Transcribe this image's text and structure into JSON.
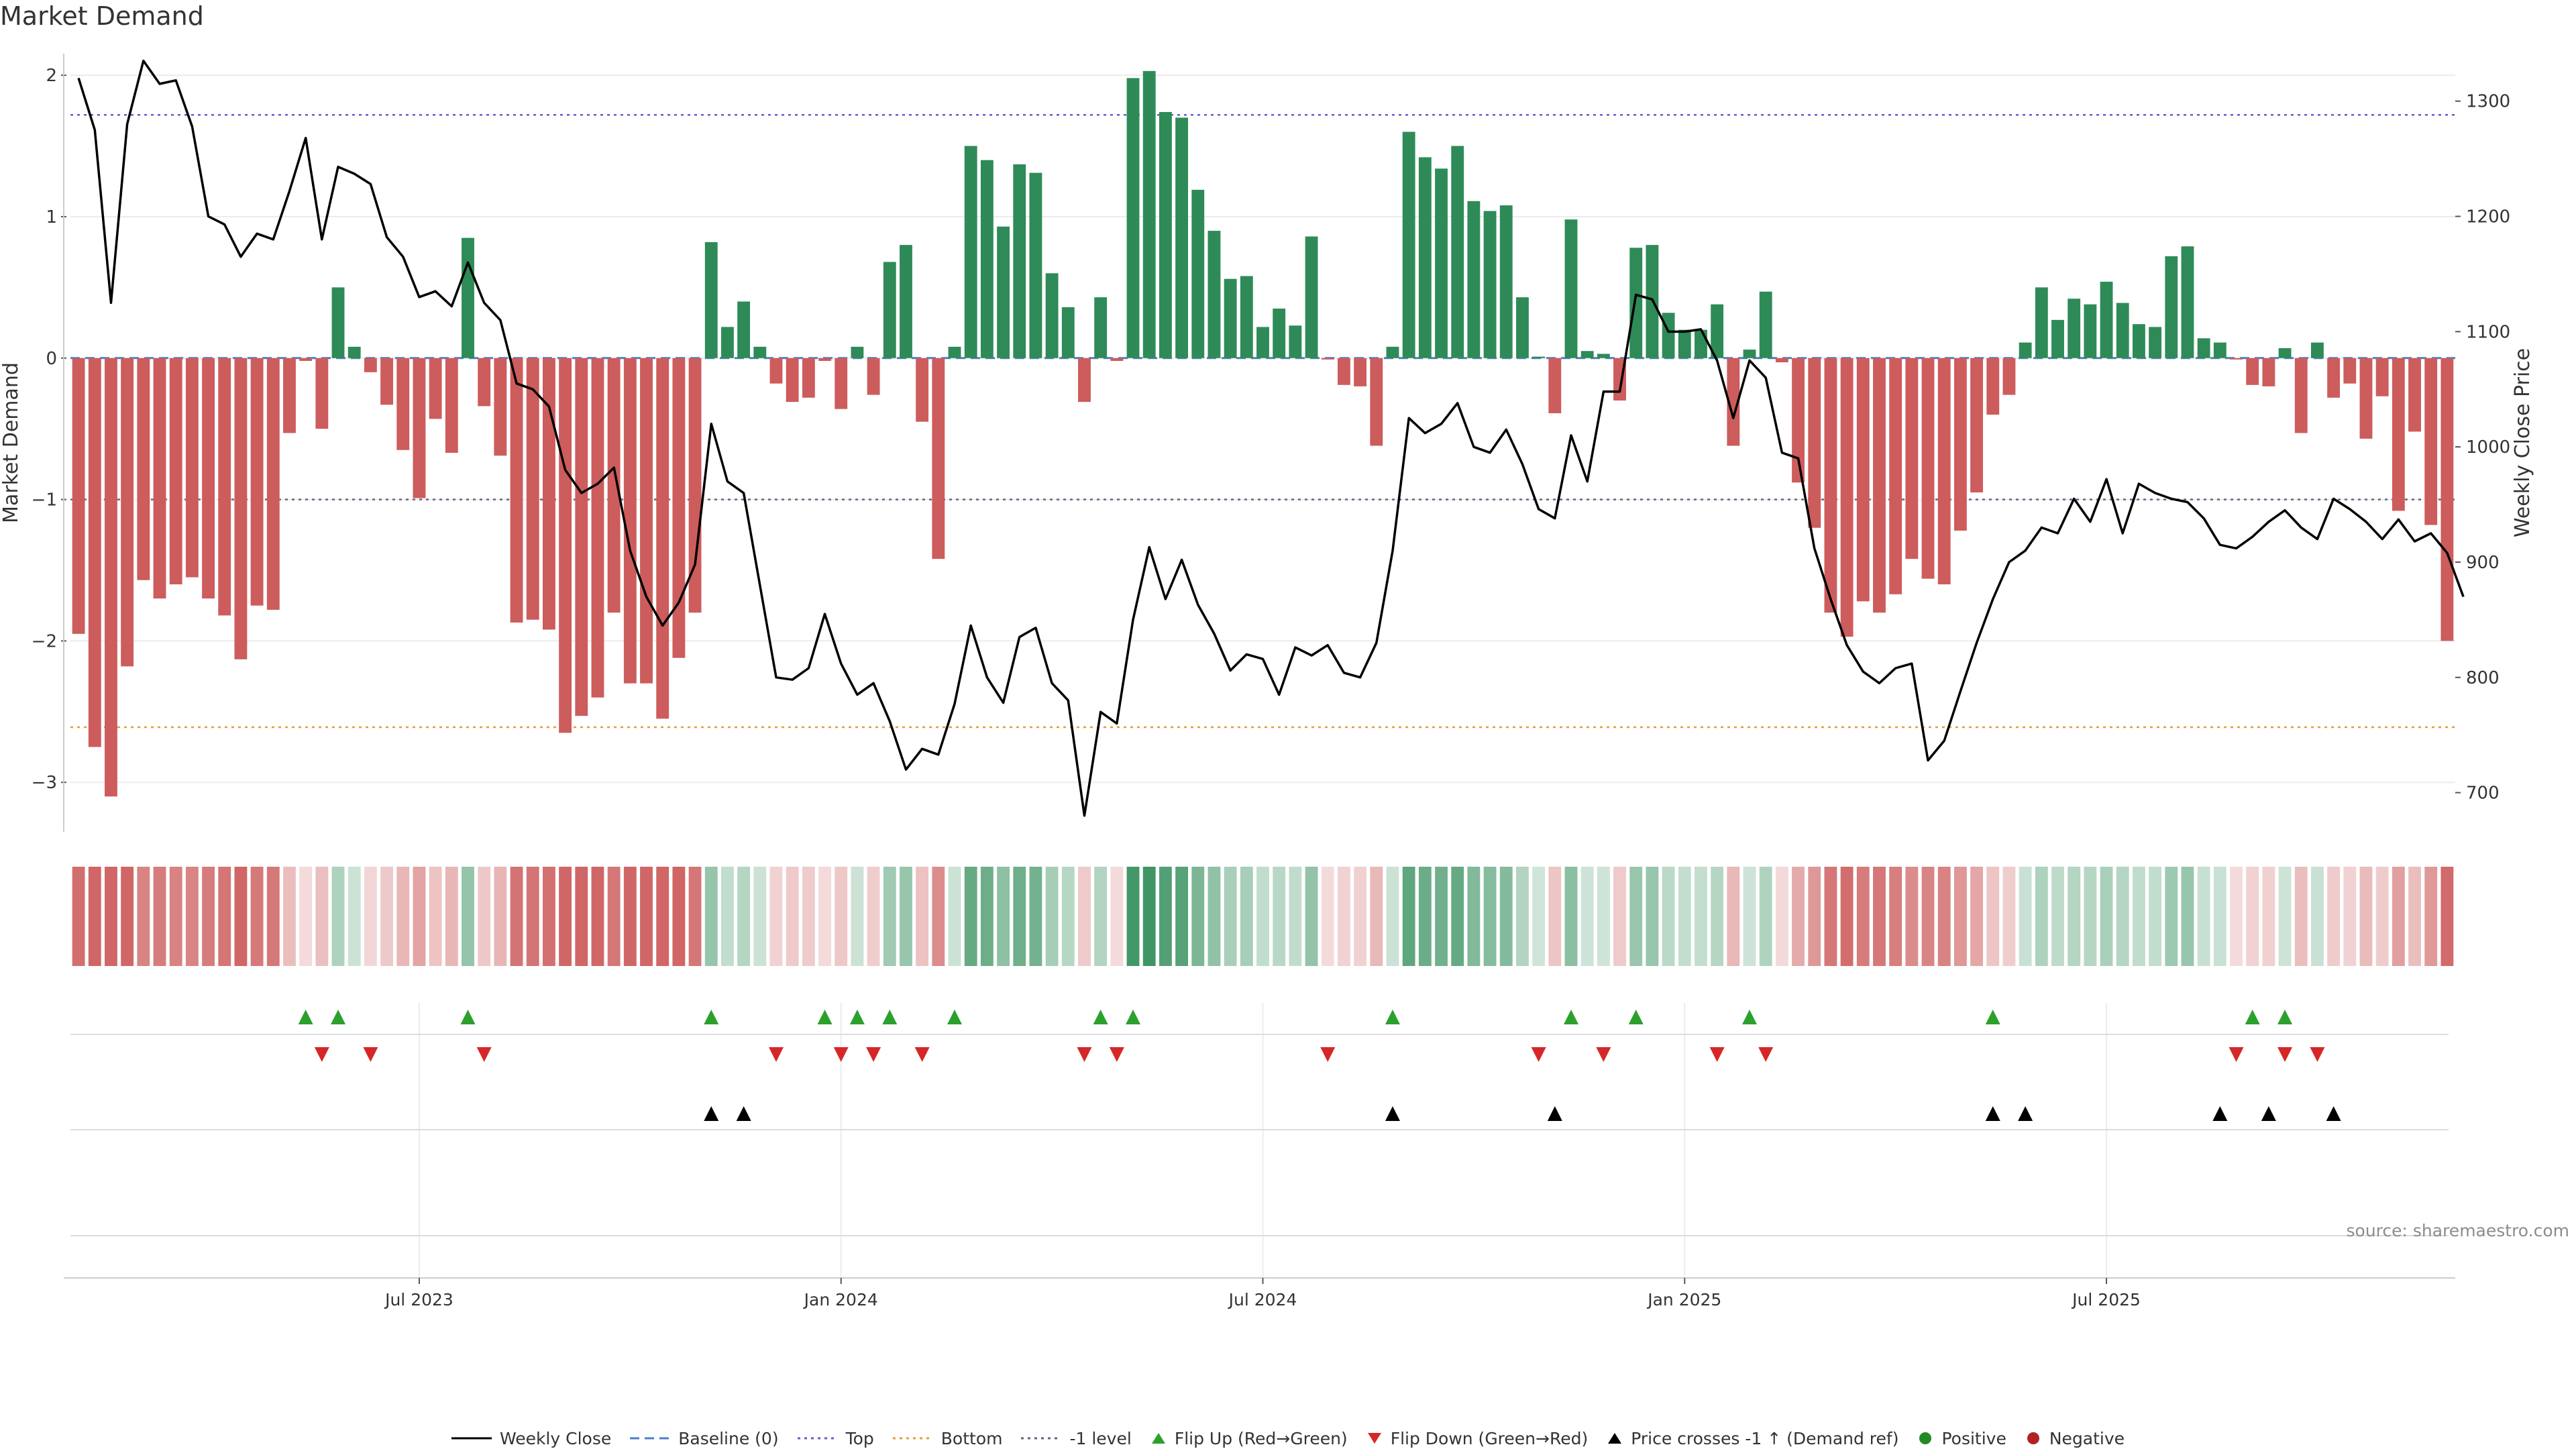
{
  "chart_data": {
    "type": "bar+line",
    "title": "Market Demand",
    "ylabel_left": "Market Demand",
    "ylabel_right": "Weekly Close Price",
    "source": "source: sharemaestro.com",
    "left_axis": {
      "ylim": [
        -3.35,
        2.2
      ],
      "ticks": [
        2,
        1,
        0,
        -1,
        -2,
        -3
      ],
      "tick_labels": [
        "2",
        "1",
        "0",
        "−1",
        "−2",
        "−3"
      ]
    },
    "right_axis": {
      "ylim": [
        666,
        1347
      ],
      "ticks": [
        1300,
        1200,
        1100,
        1000,
        900,
        800,
        700
      ],
      "tick_labels": [
        "1300",
        "1200",
        "1100",
        "1000",
        "900",
        "800",
        "700"
      ]
    },
    "reference_lines": {
      "top": 1.72,
      "bottom": -2.61,
      "minus_one": -1.0,
      "baseline": 0
    },
    "x_ticks": [
      {
        "index": 21,
        "label": "Jul 2023"
      },
      {
        "index": 47,
        "label": "Jan 2024"
      },
      {
        "index": 73,
        "label": "Jul 2024"
      },
      {
        "index": 99,
        "label": "Jan 2025"
      },
      {
        "index": 125,
        "label": "Jul 2025"
      }
    ],
    "demand": [
      -1.95,
      -2.75,
      -3.1,
      -2.18,
      -1.57,
      -1.7,
      -1.6,
      -1.55,
      -1.7,
      -1.82,
      -2.13,
      -1.75,
      -1.78,
      -0.53,
      -0.02,
      -0.5,
      0.5,
      0.08,
      -0.1,
      -0.33,
      -0.65,
      -0.99,
      -0.43,
      -0.67,
      0.85,
      -0.34,
      -0.69,
      -1.87,
      -1.85,
      -1.92,
      -2.65,
      -2.53,
      -2.4,
      -1.8,
      -2.3,
      -2.3,
      -2.55,
      -2.12,
      -1.8,
      0.82,
      0.22,
      0.4,
      0.08,
      -0.18,
      -0.31,
      -0.28,
      -0.02,
      -0.36,
      0.08,
      -0.26,
      0.68,
      0.8,
      -0.45,
      -1.42,
      0.08,
      1.5,
      1.4,
      0.93,
      1.37,
      1.31,
      0.6,
      0.36,
      -0.31,
      0.43,
      -0.02,
      1.98,
      2.03,
      1.74,
      1.7,
      1.19,
      0.9,
      0.56,
      0.58,
      0.22,
      0.35,
      0.23,
      0.86,
      -0.01,
      -0.19,
      -0.2,
      -0.62,
      0.08,
      1.6,
      1.42,
      1.34,
      1.5,
      1.11,
      1.04,
      1.08,
      0.43,
      0.01,
      -0.39,
      0.98,
      0.05,
      0.03,
      -0.3,
      0.78,
      0.8,
      0.32,
      0.2,
      0.2,
      0.38,
      -0.62,
      0.06,
      0.47,
      -0.03,
      -0.88,
      -1.2,
      -1.8,
      -1.97,
      -1.72,
      -1.8,
      -1.67,
      -1.42,
      -1.56,
      -1.6,
      -1.22,
      -0.95,
      -0.4,
      -0.26,
      0.11,
      0.5,
      0.27,
      0.42,
      0.38,
      0.54,
      0.39,
      0.24,
      0.22,
      0.72,
      0.79,
      0.14,
      0.11,
      -0.01,
      -0.19,
      -0.2,
      0.07,
      -0.53,
      0.11,
      -0.28,
      -0.18,
      -0.57,
      -0.27,
      -1.08,
      -0.52,
      -1.18,
      -2.0
    ],
    "weekly_close": [
      1320,
      1275,
      1125,
      1280,
      1335,
      1315,
      1318,
      1278,
      1200,
      1193,
      1165,
      1185,
      1180,
      1222,
      1268,
      1180,
      1243,
      1237,
      1228,
      1182,
      1165,
      1130,
      1135,
      1122,
      1160,
      1125,
      1110,
      1055,
      1050,
      1035,
      980,
      960,
      968,
      982,
      910,
      870,
      845,
      865,
      898,
      1020,
      970,
      960,
      880,
      800,
      798,
      808,
      855,
      812,
      785,
      795,
      762,
      720,
      738,
      733,
      777,
      845,
      800,
      778,
      835,
      843,
      795,
      780,
      680,
      770,
      760,
      850,
      913,
      868,
      902,
      863,
      838,
      806,
      820,
      816,
      785,
      826,
      819,
      828,
      804,
      800,
      830,
      910,
      1025,
      1012,
      1020,
      1038,
      1000,
      995,
      1015,
      985,
      946,
      938,
      1010,
      970,
      1048,
      1048,
      1132,
      1128,
      1100,
      1100,
      1102,
      1075,
      1025,
      1075,
      1060,
      995,
      990,
      912,
      868,
      828,
      805,
      795,
      808,
      812,
      728,
      745,
      788,
      830,
      868,
      900,
      910,
      930,
      925,
      955,
      935,
      972,
      925,
      968,
      960,
      955,
      952,
      938,
      915,
      912,
      922,
      935,
      945,
      930,
      920,
      955,
      946,
      935,
      920,
      937,
      918,
      925,
      908,
      870
    ],
    "flip_up_indices": [
      14,
      16,
      24,
      39,
      46,
      48,
      50,
      54,
      63,
      65,
      81,
      92,
      96,
      103,
      118,
      134,
      136
    ],
    "flip_down_indices": [
      15,
      18,
      25,
      43,
      47,
      49,
      52,
      62,
      64,
      77,
      90,
      94,
      101,
      104,
      133,
      136,
      138
    ],
    "price_cross_indices": [
      39,
      41,
      81,
      91,
      118,
      120,
      132,
      135,
      139
    ],
    "colors": {
      "positive_bar": "#2e8b57",
      "negative_bar": "#cd5c5c",
      "line": "#000000",
      "baseline": "#4a7fc1",
      "top_line": "#6a5acd",
      "bottom_line": "#e39b3c",
      "minus_one_line": "#6a5f80",
      "flip_up": "#2ca02c",
      "flip_down": "#d62728",
      "price_cross": "#000000",
      "positive_dot": "#228b22",
      "negative_dot": "#b22222"
    }
  },
  "legend": [
    {
      "key": "line",
      "label": "Weekly Close"
    },
    {
      "key": "baseline",
      "label": "Baseline (0)"
    },
    {
      "key": "top",
      "label": "Top"
    },
    {
      "key": "bottom",
      "label": "Bottom"
    },
    {
      "key": "minus_one",
      "label": "-1 level"
    },
    {
      "key": "flip_up",
      "label": "Flip Up (Red→Green)"
    },
    {
      "key": "flip_down",
      "label": "Flip Down (Green→Red)"
    },
    {
      "key": "price_cross",
      "label": "Price crosses -1 ↑ (Demand ref)"
    },
    {
      "key": "positive",
      "label": "Positive"
    },
    {
      "key": "negative",
      "label": "Negative"
    }
  ]
}
